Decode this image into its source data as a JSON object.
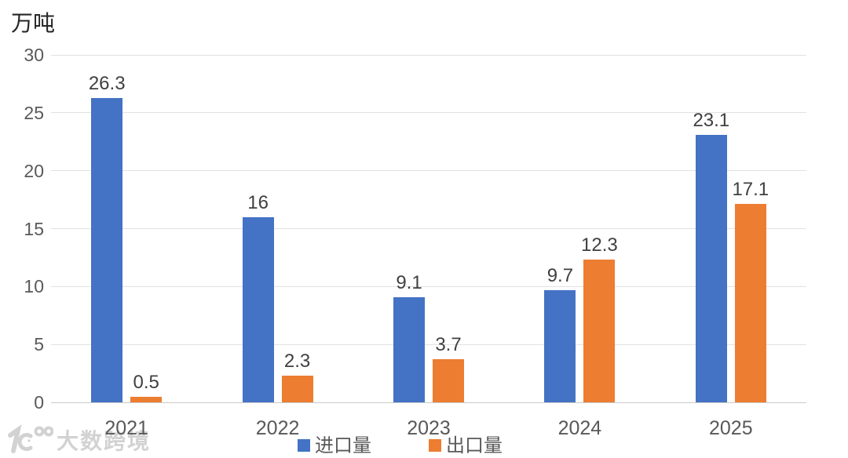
{
  "chart_data": {
    "type": "bar",
    "title": "",
    "unit_label": "万吨",
    "xlabel": "",
    "ylabel": "万吨",
    "categories": [
      "2021",
      "2022",
      "2023",
      "2024",
      "2025"
    ],
    "series": [
      {
        "name": "进口量",
        "color": "#4472C4",
        "values": [
          26.3,
          16,
          9.1,
          9.7,
          23.1
        ]
      },
      {
        "name": "出口量",
        "color": "#ED7D31",
        "values": [
          0.5,
          2.3,
          3.7,
          12.3,
          17.1
        ]
      }
    ],
    "ylim": [
      0,
      30
    ],
    "yticks": [
      0,
      5,
      10,
      15,
      20,
      25,
      30
    ],
    "grid": true,
    "legend_position": "bottom",
    "data_labels_shown": true
  },
  "colors": {
    "background": "#ffffff",
    "gridline": "#e2e2e2",
    "axis_line": "#c9c9c9",
    "tick_label": "#595959",
    "data_label": "#404040",
    "unit_label": "#262626"
  },
  "watermark": {
    "text": "大数跨境",
    "logo": "10100-logo"
  }
}
